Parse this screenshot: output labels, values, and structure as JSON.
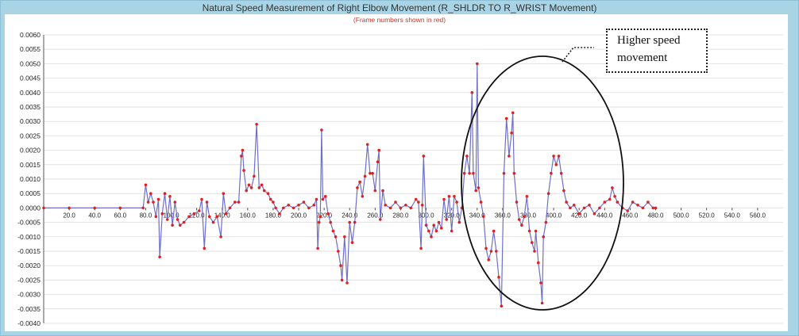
{
  "chart_data": {
    "type": "line",
    "title": "Natural Speed Measurement of Right Elbow Movement (R_SHLDR TO R_WRIST Movement)",
    "subtitle": "(Frame numbers shown in red)",
    "xlabel": "",
    "ylabel": "",
    "xlim": [
      0,
      580
    ],
    "ylim": [
      -0.004,
      0.006
    ],
    "grid": true,
    "x_ticks": [
      "20.0",
      "40.0",
      "60.0",
      "80.0",
      "100.0",
      "120.0",
      "140.0",
      "160.0",
      "180.0",
      "200.0",
      "220.0",
      "240.0",
      "260.0",
      "280.0",
      "300.0",
      "320.0",
      "340.0",
      "360.0",
      "380.0",
      "400.0",
      "420.0",
      "440.0",
      "460.0",
      "480.0",
      "500.0",
      "520.0",
      "540.0",
      "560.0"
    ],
    "y_ticks": [
      "0.0060",
      "0.0055",
      "0.0050",
      "0.0045",
      "0.0040",
      "0.0035",
      "0.0030",
      "0.0025",
      "0.0020",
      "0.0015",
      "0.0010",
      "0.0005",
      "0.0000",
      "-0.0005",
      "-0.0010",
      "-0.0015",
      "-0.0020",
      "-0.0025",
      "-0.0030",
      "-0.0035",
      "-0.0040"
    ],
    "series": [
      {
        "color": "#6f6fc8",
        "marker_color": "#e02020",
        "points": [
          [
            0,
            0
          ],
          [
            20,
            0
          ],
          [
            40,
            0
          ],
          [
            60,
            0
          ],
          [
            78,
            0
          ],
          [
            80,
            0.0008
          ],
          [
            82,
            0.0002
          ],
          [
            84,
            0.0005
          ],
          [
            86,
            0.0002
          ],
          [
            88,
            -0.0003
          ],
          [
            90,
            0.0003
          ],
          [
            91,
            -0.0017
          ],
          [
            93,
            -0.0002
          ],
          [
            95,
            0.0005
          ],
          [
            97,
            -0.0004
          ],
          [
            99,
            0.0004
          ],
          [
            101,
            -0.0006
          ],
          [
            103,
            0.0002
          ],
          [
            105,
            -0.0004
          ],
          [
            107,
            -0.0006
          ],
          [
            110,
            -0.0005
          ],
          [
            114,
            -0.0003
          ],
          [
            118,
            -0.0002
          ],
          [
            122,
            -0.0001
          ],
          [
            124,
            0.0003
          ],
          [
            126,
            -0.0014
          ],
          [
            128,
            0.0002
          ],
          [
            130,
            -0.0003
          ],
          [
            133,
            -0.0005
          ],
          [
            136,
            -0.0003
          ],
          [
            139,
            -0.001
          ],
          [
            141,
            0.0005
          ],
          [
            143,
            -0.0002
          ],
          [
            146,
            0
          ],
          [
            150,
            0.0002
          ],
          [
            153,
            0.0002
          ],
          [
            155,
            0.0018
          ],
          [
            156,
            0.002
          ],
          [
            157,
            0.0013
          ],
          [
            159,
            0.0006
          ],
          [
            161,
            0.0008
          ],
          [
            163,
            0.0007
          ],
          [
            165,
            0.0011
          ],
          [
            167,
            0.0029
          ],
          [
            169,
            0.0007
          ],
          [
            171,
            0.0008
          ],
          [
            173,
            0.0006
          ],
          [
            176,
            0.0005
          ],
          [
            178,
            0.0003
          ],
          [
            180,
            0.0002
          ],
          [
            182,
            0
          ],
          [
            185,
            -0.0002
          ],
          [
            188,
            0
          ],
          [
            192,
            0.0001
          ],
          [
            196,
            0
          ],
          [
            200,
            0.0001
          ],
          [
            204,
            0.0002
          ],
          [
            208,
            0
          ],
          [
            212,
            0.0001
          ],
          [
            214,
            0.0003
          ],
          [
            215,
            -0.0014
          ],
          [
            216,
            -0.0005
          ],
          [
            217,
            -0.0003
          ],
          [
            218,
            0.0027
          ],
          [
            219,
            0.0003
          ],
          [
            221,
            0.0004
          ],
          [
            223,
            -0.0002
          ],
          [
            225,
            -0.0005
          ],
          [
            227,
            -0.0008
          ],
          [
            229,
            -0.001
          ],
          [
            231,
            -0.0015
          ],
          [
            233,
            -0.002
          ],
          [
            234,
            -0.0025
          ],
          [
            236,
            -0.001
          ],
          [
            238,
            -0.0026
          ],
          [
            240,
            -0.0005
          ],
          [
            242,
            -0.0012
          ],
          [
            244,
            -0.0005
          ],
          [
            246,
            0.0007
          ],
          [
            248,
            0.0009
          ],
          [
            250,
            0.0004
          ],
          [
            252,
            0.0011
          ],
          [
            254,
            0.0022
          ],
          [
            256,
            0.0012
          ],
          [
            258,
            0.0012
          ],
          [
            260,
            0.0006
          ],
          [
            262,
            0.0016
          ],
          [
            263,
            0.002
          ],
          [
            264,
            -0.0004
          ],
          [
            266,
            0.0006
          ],
          [
            268,
            0.0001
          ],
          [
            272,
            0
          ],
          [
            276,
            0.0002
          ],
          [
            280,
            0
          ],
          [
            284,
            0.0001
          ],
          [
            288,
            0
          ],
          [
            292,
            0.0003
          ],
          [
            294,
            0.0002
          ],
          [
            296,
            -0.0014
          ],
          [
            297,
            0.0001
          ],
          [
            298,
            0.0018
          ],
          [
            300,
            -0.0006
          ],
          [
            302,
            -0.0008
          ],
          [
            304,
            -0.001
          ],
          [
            306,
            -0.0006
          ],
          [
            308,
            -0.0008
          ],
          [
            310,
            -0.0005
          ],
          [
            312,
            -0.0007
          ],
          [
            314,
            0.0003
          ],
          [
            316,
            -0.0004
          ],
          [
            318,
            0.0004
          ],
          [
            320,
            -0.0008
          ],
          [
            322,
            0.0004
          ],
          [
            324,
            0.0002
          ],
          [
            326,
            -0.0005
          ],
          [
            328,
            0
          ],
          [
            330,
            0.0012
          ],
          [
            332,
            0.0018
          ],
          [
            334,
            0.0012
          ],
          [
            336,
            0.004
          ],
          [
            337,
            0.0012
          ],
          [
            339,
            0.0006
          ],
          [
            340,
            0.005
          ],
          [
            341,
            0.0007
          ],
          [
            343,
            0.0002
          ],
          [
            345,
            -0.0003
          ],
          [
            347,
            -0.0014
          ],
          [
            349,
            -0.0018
          ],
          [
            351,
            -0.0015
          ],
          [
            353,
            -0.0008
          ],
          [
            355,
            -0.0015
          ],
          [
            357,
            -0.0024
          ],
          [
            359,
            -0.0034
          ],
          [
            361,
            0.0012
          ],
          [
            363,
            0.0031
          ],
          [
            365,
            0.0018
          ],
          [
            367,
            0.0026
          ],
          [
            368,
            0.0033
          ],
          [
            369,
            0.0012
          ],
          [
            371,
            0.0002
          ],
          [
            373,
            -0.0004
          ],
          [
            375,
            -0.0006
          ],
          [
            377,
            -0.0003
          ],
          [
            379,
            0.0004
          ],
          [
            381,
            -0.0008
          ],
          [
            383,
            -0.0012
          ],
          [
            385,
            -0.0015
          ],
          [
            386,
            -0.0008
          ],
          [
            388,
            -0.0019
          ],
          [
            390,
            -0.0026
          ],
          [
            391,
            -0.0033
          ],
          [
            392,
            -0.001
          ],
          [
            394,
            -0.0005
          ],
          [
            396,
            0.0005
          ],
          [
            398,
            0.0012
          ],
          [
            400,
            0.0018
          ],
          [
            402,
            0.0015
          ],
          [
            404,
            0.0018
          ],
          [
            406,
            0.0012
          ],
          [
            408,
            0.0006
          ],
          [
            410,
            0.0002
          ],
          [
            413,
            0
          ],
          [
            416,
            0.0001
          ],
          [
            420,
            -0.0002
          ],
          [
            424,
            0
          ],
          [
            428,
            0.0001
          ],
          [
            432,
            -0.0002
          ],
          [
            436,
            0
          ],
          [
            440,
            0.0002
          ],
          [
            444,
            0.0003
          ],
          [
            446,
            0.0007
          ],
          [
            448,
            0.0004
          ],
          [
            450,
            0.0002
          ],
          [
            454,
            0
          ],
          [
            458,
            -0.0001
          ],
          [
            462,
            0.0002
          ],
          [
            466,
            0.0001
          ],
          [
            470,
            0
          ],
          [
            474,
            0.0002
          ],
          [
            478,
            0
          ],
          [
            480,
            0
          ]
        ]
      }
    ],
    "annotation": {
      "label": "Higher speed movement"
    }
  }
}
